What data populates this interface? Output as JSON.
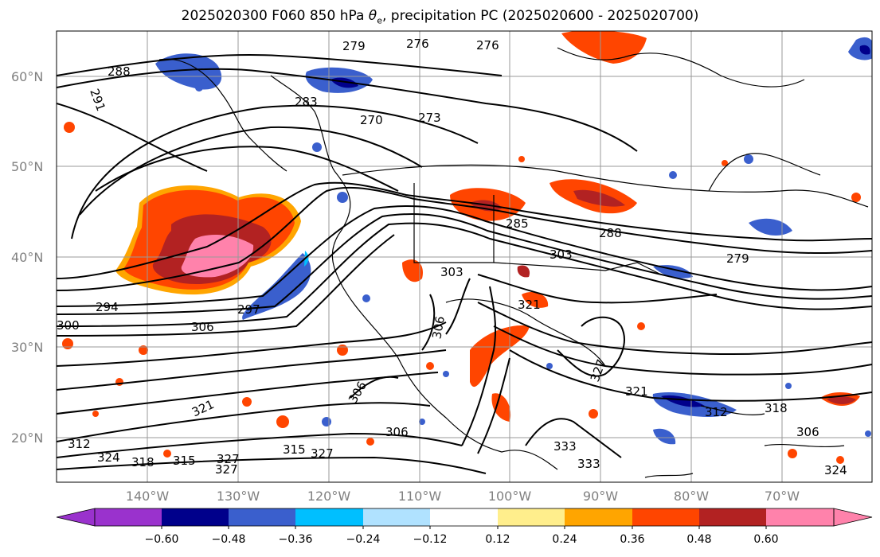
{
  "title_main": "2025020300 F060 850 hPa ",
  "title_symbol": "θ",
  "title_sub": "e",
  "title_rest": ", precipitation PC (2025020600 - 2025020700)",
  "map": {
    "lat_labels": [
      "60°N",
      "50°N",
      "40°N",
      "30°N",
      "20°N"
    ],
    "lon_labels": [
      "140°W",
      "130°W",
      "120°W",
      "110°W",
      "100°W",
      "90°W",
      "80°W",
      "70°W"
    ],
    "contour_labels": [
      "288",
      "291",
      "279",
      "276",
      "276",
      "283",
      "270",
      "273",
      "285",
      "288",
      "303",
      "279",
      "303",
      "294",
      "297",
      "300",
      "306",
      "306",
      "321",
      "306",
      "306",
      "324",
      "321",
      "312",
      "318",
      "315",
      "327",
      "327",
      "315",
      "327",
      "333",
      "333",
      "312",
      "318",
      "324",
      "321",
      "306",
      "327"
    ]
  },
  "colorbar": {
    "ticks": [
      "−0.60",
      "−0.48",
      "−0.36",
      "−0.24",
      "−0.12",
      "0.12",
      "0.24",
      "0.36",
      "0.48",
      "0.60"
    ],
    "colors": [
      "#9a32cd",
      "#00008b",
      "#3a5fcd",
      "#00bfff",
      "#b0e2ff",
      "#ffffff",
      "#ffee8c",
      "#ffa500",
      "#ff4500",
      "#b22222",
      "#ff82ab"
    ]
  }
}
